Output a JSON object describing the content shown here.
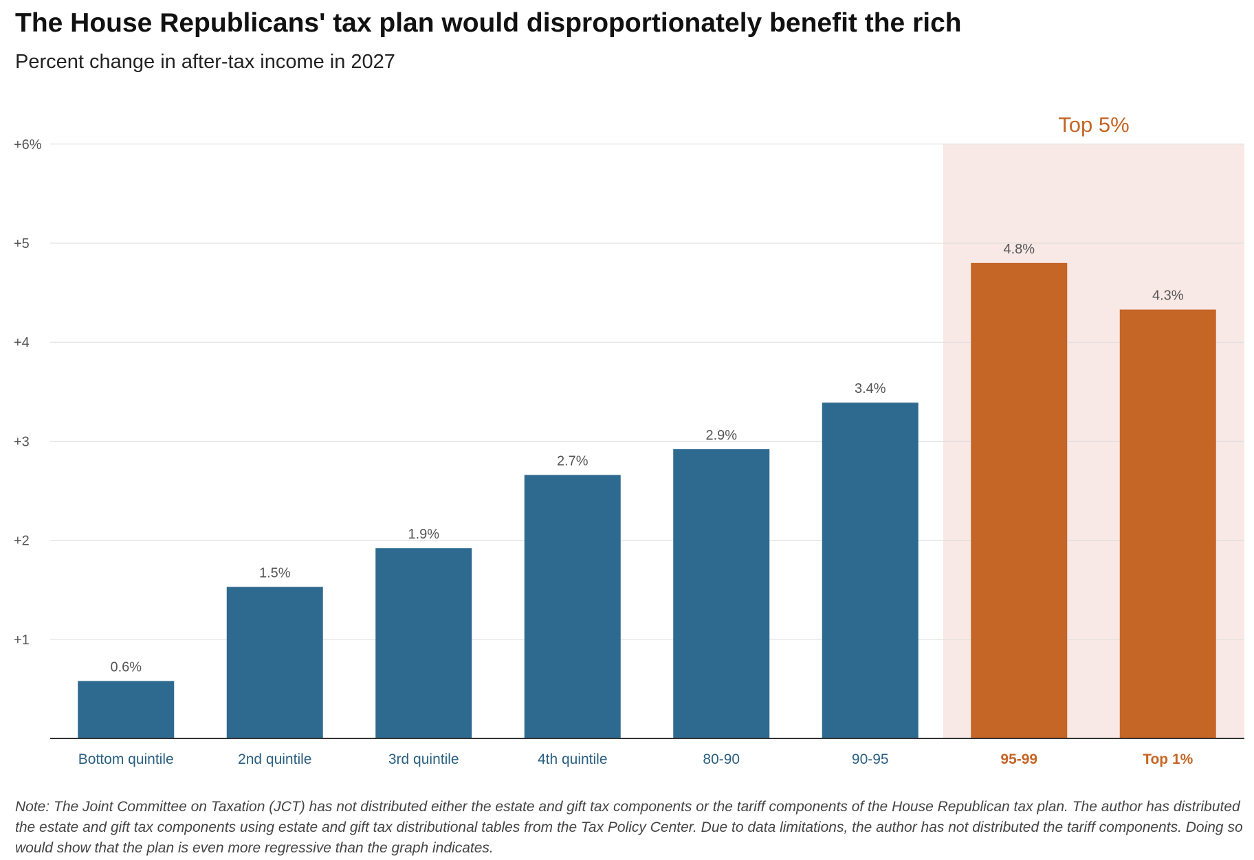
{
  "title": "The House Republicans' tax plan would disproportionately benefit the rich",
  "subtitle": "Percent change in after-tax income in 2027",
  "note": "Note: The Joint Committee on Taxation (JCT) has not distributed either the estate and gift tax components or the tariff components of the House Republican tax plan. The author has distributed the estate and gift tax components using estate and gift tax distributional tables from the Tax Policy Center. Due to data limitations, the author has not distributed the tariff components. Doing so would show that the plan is even more regressive than the graph indicates.",
  "colors": {
    "base_bar": "#2e6a8f",
    "highlight_bar": "#c56526",
    "highlight_region": "#f8e8e6",
    "base_label": "#2a5f80",
    "highlight_label": "#c56526"
  },
  "chart_data": {
    "type": "bar",
    "categories": [
      "Bottom quintile",
      "2nd quintile",
      "3rd quintile",
      "4th quintile",
      "80-90",
      "90-95",
      "95-99",
      "Top 1%"
    ],
    "values": [
      0.58,
      1.53,
      1.92,
      2.66,
      2.92,
      3.39,
      4.8,
      4.33
    ],
    "value_labels": [
      "0.6%",
      "1.5%",
      "1.9%",
      "2.7%",
      "2.9%",
      "3.4%",
      "4.8%",
      "4.3%"
    ],
    "highlighted": [
      false,
      false,
      false,
      false,
      false,
      false,
      true,
      true
    ],
    "highlight_region_label": "Top 5%",
    "ylim": [
      0,
      6
    ],
    "yticks": [
      1,
      2,
      3,
      4,
      5,
      6
    ],
    "ytick_labels": [
      "+1",
      "+2",
      "+3",
      "+4",
      "+5",
      "+6%"
    ],
    "grid": true
  }
}
